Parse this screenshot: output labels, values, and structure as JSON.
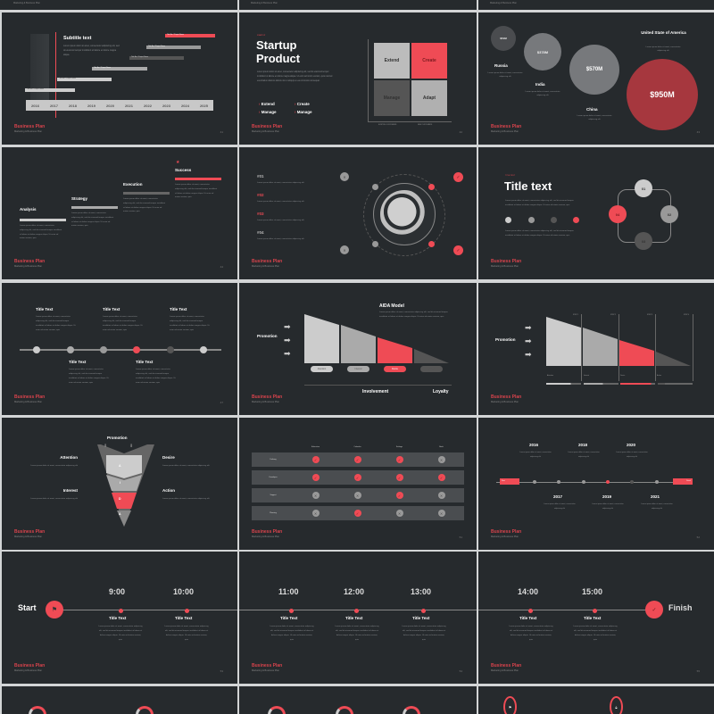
{
  "common": {
    "brand": "Business Plan",
    "brand_sub": "Marketing & Business Plan",
    "lorem_short": "Lorem ipsum dolor sit amet, consectetur adipiscing elit, sed do eiusmod tempor incididunt ut labore et dolore magna aliqua. Ut enim ad minim veniam, quis",
    "lorem_tiny": "Lorem ipsum dolor sit amet, consectetur adipiscing elit",
    "page_numbers": [
      "41",
      "42",
      "43",
      "44",
      "45",
      "46",
      "47",
      "48",
      "49",
      "50",
      "51",
      "52",
      "53",
      "54",
      "55"
    ]
  },
  "gantt": {
    "subtitle": "Subtitle text",
    "body": "Lorem ipsum dolor sit amet, consectetur adipiscing elit, sed do eiusmod tempor incididunt ut labore et dolore magna aliqua.",
    "years": [
      "2016",
      "2017",
      "2018",
      "2019",
      "2020",
      "2021",
      "2022",
      "2023",
      "2024",
      "2025"
    ],
    "bar_label": "Title Bar / Project Name"
  },
  "startup": {
    "eyebrow": "STARTUP",
    "title_line1": "Startup",
    "title_line2": "Product",
    "body": "Lorem ipsum dolor sit amet, consectetur adipiscing elit, sed do eiusmod tempor incididunt ut labore et dolore magna aliqua. Ut enim ad minim veniam, quis nostrud exercitation ullamco laboris nisi ut aliquip ex ea commodo consequat.",
    "bullets": [
      "Extend",
      "Create",
      "Manage",
      "Manage"
    ],
    "quadrants": [
      "Extend",
      "Create",
      "Manage",
      "Adapt"
    ],
    "x_labels": [
      "EXISTING CUSTOMERS",
      "NEW CUSTOMERS"
    ]
  },
  "markets": {
    "items": [
      {
        "value": "$51M",
        "country": "Russia"
      },
      {
        "value": "$378M",
        "country": "India"
      },
      {
        "value": "$570M",
        "country": "China"
      },
      {
        "value": "$950M",
        "country": "United State of America"
      }
    ]
  },
  "steps": {
    "items": [
      "Analysis",
      "Strategy",
      "Execution",
      "Success"
    ]
  },
  "globe": {
    "items": [
      "#01",
      "#02",
      "#03",
      "#04"
    ]
  },
  "cycle": {
    "eyebrow": "TITLE TEXT",
    "title": "Title text",
    "nodes": [
      "01",
      "02",
      "03",
      "04"
    ]
  },
  "timeline5": {
    "title": "Title Text"
  },
  "aida": {
    "title": "AIDA Model",
    "promotion": "Promotion",
    "pills": [
      "Attention",
      "Interest",
      "Desire",
      "Action"
    ],
    "involvement": "Involvement",
    "loyalty": "Loyalty"
  },
  "aida2": {
    "promotion": "Promotion",
    "steps": [
      "STEP 1",
      "STEP 2",
      "STEP 3",
      "STEP 4"
    ],
    "labels": [
      "Attention",
      "Interest",
      "Desire",
      "Action"
    ]
  },
  "funnel": {
    "promotion": "Promotion",
    "letters": [
      "A",
      "I",
      "D",
      "A"
    ],
    "attention": "Attention",
    "interest": "Interest",
    "desire": "Desire",
    "action": "Action"
  },
  "matrix": {
    "columns": [
      "Education",
      "Calendar",
      "Settings",
      "Book"
    ],
    "rows": [
      {
        "label": "Delivery",
        "vals": [
          1,
          1,
          1,
          0
        ]
      },
      {
        "label": "Developer",
        "vals": [
          1,
          1,
          1,
          1
        ]
      },
      {
        "label": "Support",
        "vals": [
          0,
          0,
          1,
          0
        ]
      },
      {
        "label": "Planning",
        "vals": [
          0,
          1,
          0,
          0
        ]
      }
    ]
  },
  "years_tl": {
    "start": "Start",
    "finish": "Finish",
    "top": [
      "2016",
      "2018",
      "2020"
    ],
    "bottom": [
      "2017",
      "2019",
      "2021"
    ]
  },
  "day_tl": {
    "start": "Start",
    "finish": "Finish",
    "times": [
      "9:00",
      "10:00",
      "11:00",
      "12:00",
      "13:00",
      "14:00",
      "15:00"
    ],
    "title": "Title Text"
  }
}
